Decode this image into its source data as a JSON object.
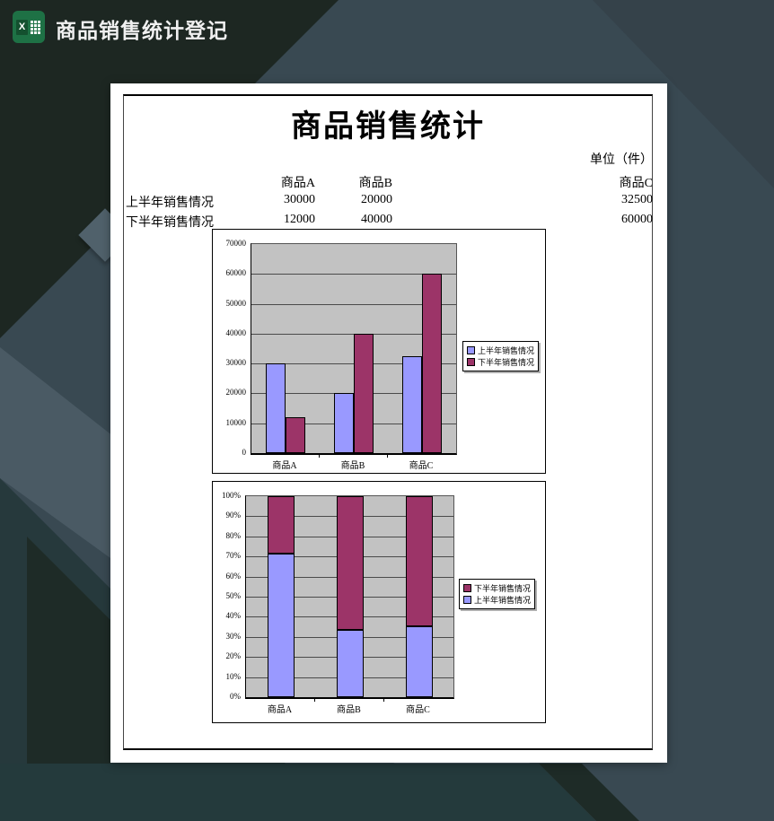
{
  "titlebar": {
    "title": "商品销售统计登记",
    "icon_letter": "X"
  },
  "page": {
    "title": "商品销售统计",
    "unit_label": "单位（件）",
    "table": {
      "columns": [
        "商品A",
        "商品B",
        "商品C"
      ],
      "rows": [
        {
          "label": "上半年销售情况",
          "values": [
            "30000",
            "20000",
            "32500"
          ]
        },
        {
          "label": "下半年销售情况",
          "values": [
            "12000",
            "40000",
            "60000"
          ]
        }
      ]
    }
  },
  "colors": {
    "series_first_half": "#9999FF",
    "series_second_half": "#9C3468",
    "plot_background": "#C2C2C2",
    "excel_green": "#1E7145"
  },
  "chart_data": [
    {
      "type": "bar",
      "title": "",
      "categories": [
        "商品A",
        "商品B",
        "商品C"
      ],
      "series": [
        {
          "name": "上半年销售情况",
          "values": [
            30000,
            20000,
            32500
          ],
          "color": "#9999FF"
        },
        {
          "name": "下半年销售情况",
          "values": [
            12000,
            40000,
            60000
          ],
          "color": "#9C3468"
        }
      ],
      "ylim": [
        0,
        70000
      ],
      "ytick_labels": [
        "0",
        "10000",
        "20000",
        "30000",
        "40000",
        "50000",
        "60000",
        "70000"
      ],
      "grid": true,
      "legend_position": "right",
      "legend_order": [
        "上半年销售情况",
        "下半年销售情况"
      ]
    },
    {
      "type": "stacked-bar-100",
      "title": "",
      "categories": [
        "商品A",
        "商品B",
        "商品C"
      ],
      "series": [
        {
          "name": "上半年销售情况",
          "values": [
            30000,
            20000,
            32500
          ],
          "color": "#9999FF"
        },
        {
          "name": "下半年销售情况",
          "values": [
            12000,
            40000,
            60000
          ],
          "color": "#9C3468"
        }
      ],
      "stack_percent_first_half": [
        71.4,
        33.3,
        35.1
      ],
      "stack_percent_second_half": [
        28.6,
        66.7,
        64.9
      ],
      "ylim": [
        0,
        100
      ],
      "ytick_labels": [
        "0%",
        "10%",
        "20%",
        "30%",
        "40%",
        "50%",
        "60%",
        "70%",
        "80%",
        "90%",
        "100%"
      ],
      "grid": true,
      "legend_position": "right",
      "legend_order": [
        "下半年销售情况",
        "上半年销售情况"
      ]
    }
  ]
}
